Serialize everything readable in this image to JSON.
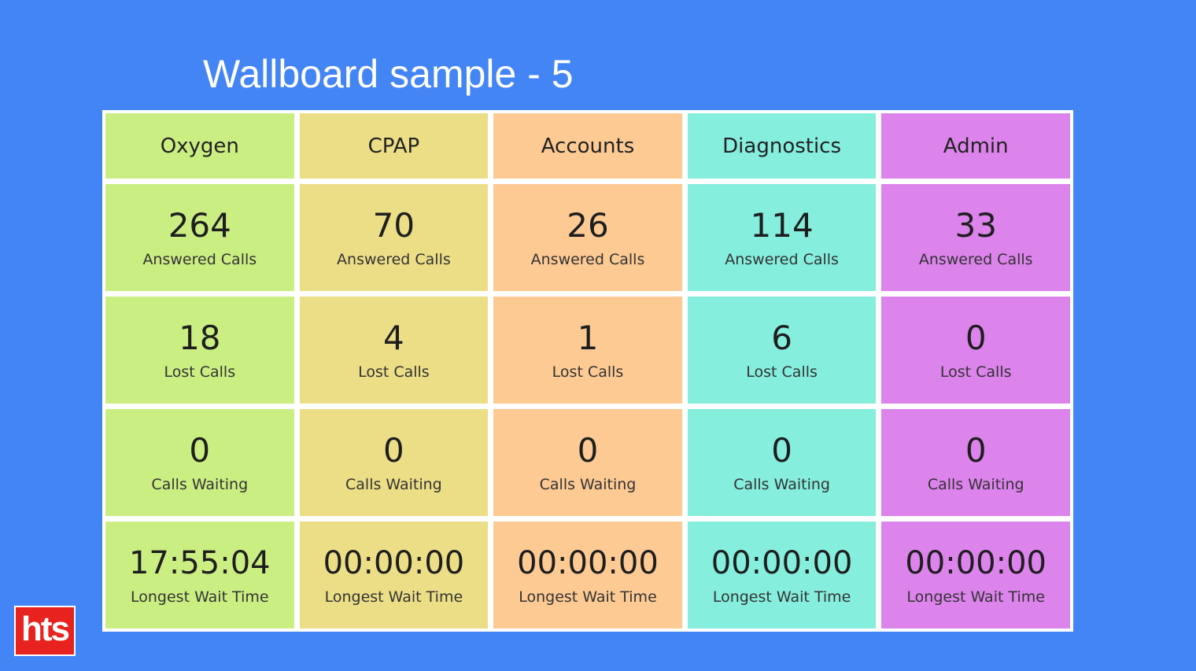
{
  "title": "Wallboard sample - 5",
  "logo": {
    "text": "hts",
    "color": "#e8231f"
  },
  "labels": {
    "answered": "Answered Calls",
    "lost": "Lost Calls",
    "waiting": "Calls Waiting",
    "longest_wait": "Longest Wait Time"
  },
  "departments": [
    {
      "name": "Oxygen",
      "color": "#cbee83",
      "answered": "264",
      "lost": "18",
      "waiting": "0",
      "longest_wait": "17:55:04"
    },
    {
      "name": "CPAP",
      "color": "#ecde86",
      "answered": "70",
      "lost": "4",
      "waiting": "0",
      "longest_wait": "00:00:00"
    },
    {
      "name": "Accounts",
      "color": "#fdca94",
      "answered": "26",
      "lost": "1",
      "waiting": "0",
      "longest_wait": "00:00:00"
    },
    {
      "name": "Diagnostics",
      "color": "#85eedd",
      "answered": "114",
      "lost": "6",
      "waiting": "0",
      "longest_wait": "00:00:00"
    },
    {
      "name": "Admin",
      "color": "#dc83ec",
      "answered": "33",
      "lost": "0",
      "waiting": "0",
      "longest_wait": "00:00:00"
    }
  ]
}
